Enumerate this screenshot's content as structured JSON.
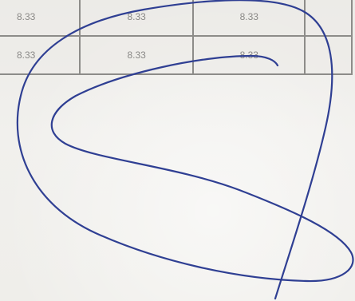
{
  "table": {
    "rows": [
      [
        "8.33",
        "8.33",
        "8.33",
        ""
      ],
      [
        "8.33",
        "8.33",
        "8.33",
        ""
      ]
    ]
  },
  "ink_color": "#2f3f93"
}
